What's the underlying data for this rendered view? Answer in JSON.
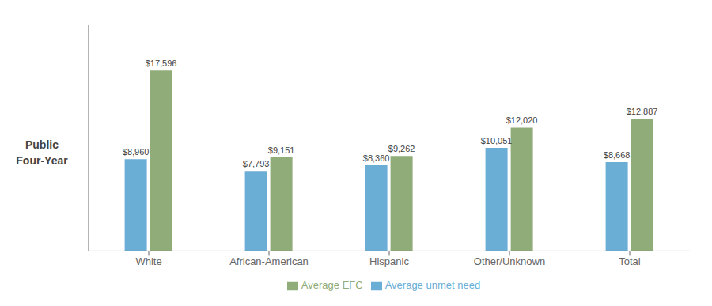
{
  "chart_data": {
    "type": "bar",
    "ylabel": "Public\nFour-Year",
    "categories": [
      "White",
      "African-American",
      "Hispanic",
      "Other/Unknown",
      "Total"
    ],
    "series": [
      {
        "name": "Average unmet need",
        "color": "#6aaed6",
        "values": [
          8960,
          7793,
          8360,
          10051,
          8668
        ],
        "value_labels": [
          "$8,960",
          "$7,793",
          "$8,360",
          "$10,051",
          "$8,668"
        ]
      },
      {
        "name": "Average EFC",
        "color": "#8fac79",
        "values": [
          17596,
          9151,
          9262,
          12020,
          12887
        ],
        "value_labels": [
          "$17,596",
          "$9,151",
          "$9,262",
          "$12,020",
          "$12,887"
        ]
      }
    ],
    "ylim": [
      0,
      22000
    ],
    "grid": false,
    "legend": "bottom",
    "data_labels": true,
    "tick_labels": "x"
  }
}
